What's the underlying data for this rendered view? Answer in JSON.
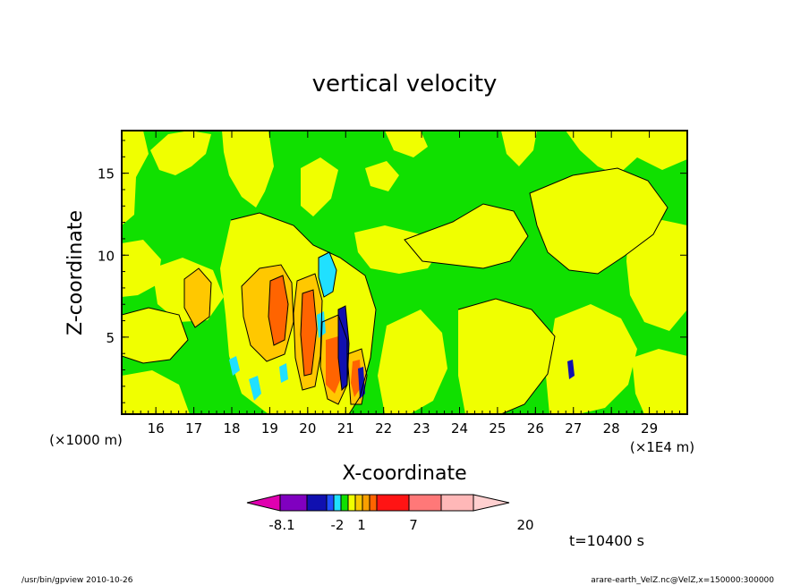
{
  "chart_data": {
    "type": "heatmap",
    "title": "vertical velocity",
    "xlabel": "X-coordinate",
    "ylabel": "Z-coordinate",
    "xlim": [
      15.1,
      30
    ],
    "ylim": [
      0.3,
      17.6
    ],
    "x_ticks": [
      "16",
      "17",
      "18",
      "19",
      "20",
      "21",
      "22",
      "23",
      "24",
      "25",
      "26",
      "27",
      "28",
      "29"
    ],
    "y_ticks": [
      "5",
      "10",
      "15"
    ],
    "x_unit": "(×1E4 m)",
    "y_unit": "(×1000 m)",
    "colorbar": {
      "labels": [
        "-8.1",
        "-2",
        "1",
        "7",
        "20"
      ],
      "colors": [
        "#e000b0",
        "#8000c0",
        "#1010b0",
        "#2050ff",
        "#20e0ff",
        "#10e000",
        "#f0ff00",
        "#f8c800",
        "#f8a000",
        "#ff6400",
        "#ff1414",
        "#ff7878",
        "#ffb8b8",
        "#ffd0d0"
      ]
    },
    "time_label": "t=10400 s",
    "palette": {
      "background": "#10e000",
      "weak_positive": "#f0ff00",
      "moderate": "#ffc800",
      "strong": "#ff6400",
      "weak_negative": "#20e0ff",
      "strong_negative": "#1010b0"
    }
  },
  "footer": {
    "left": "/usr/bin/gpview  2010-10-26",
    "right": "arare-earth_VelZ.nc@VelZ,x=150000:300000"
  }
}
